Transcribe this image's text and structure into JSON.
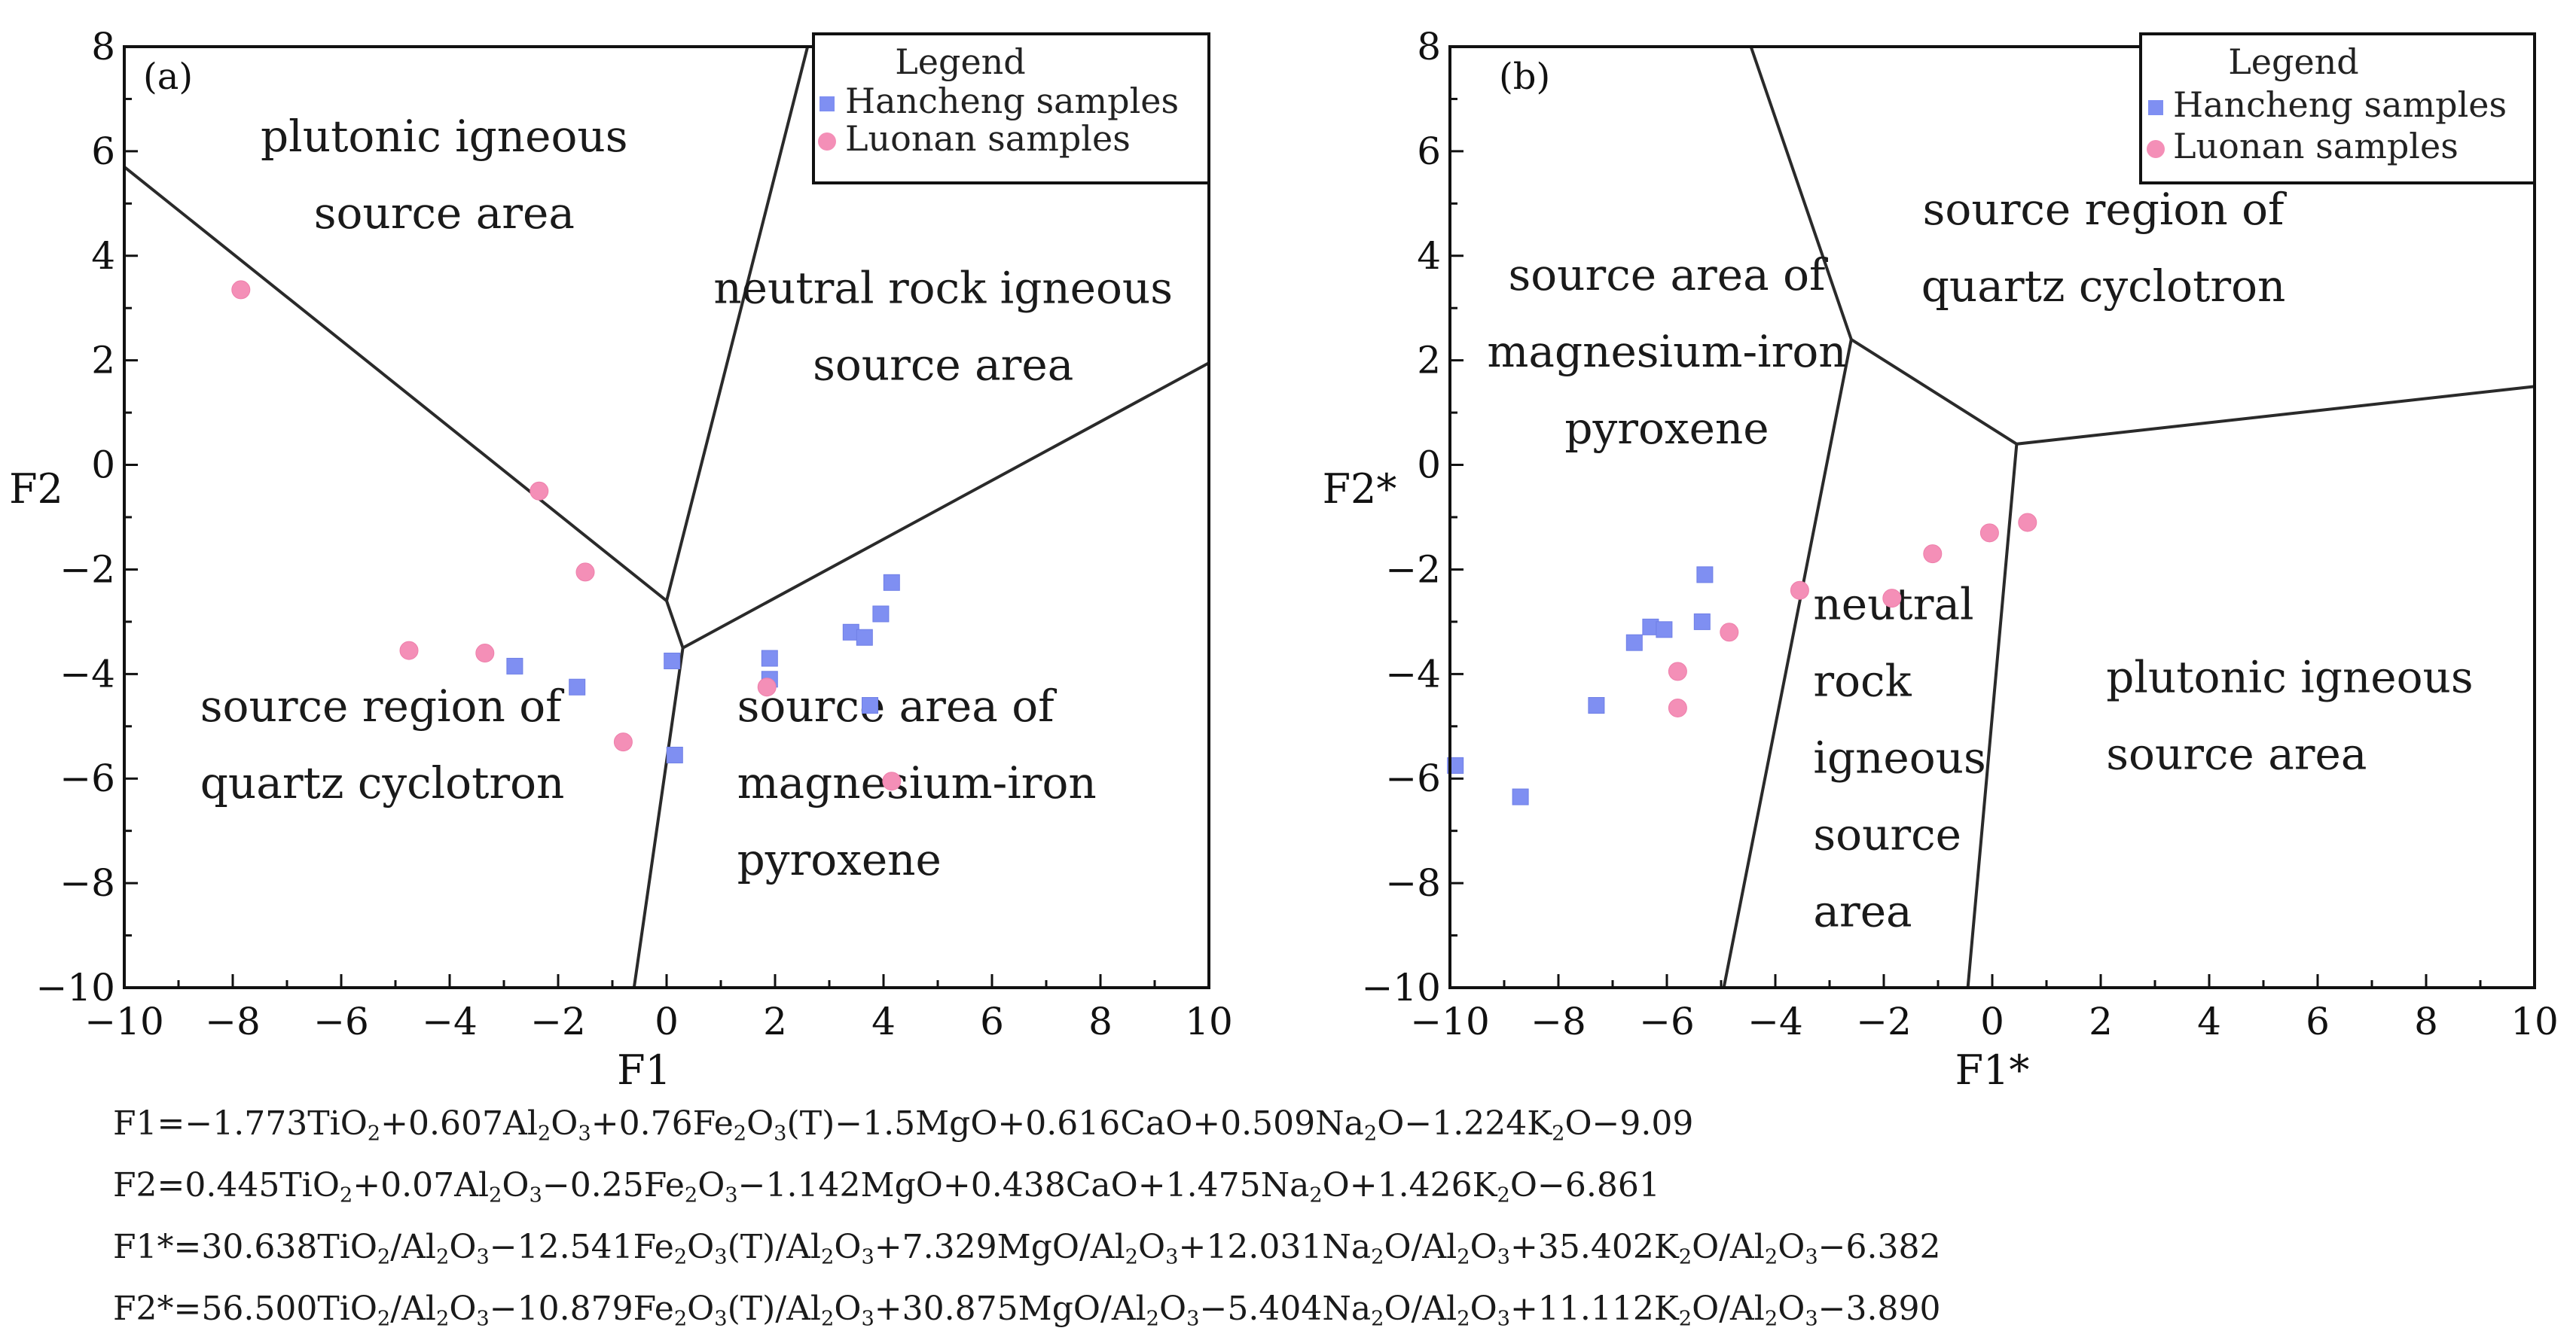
{
  "chart_data": [
    {
      "type": "scatter",
      "panel_label": "(a)",
      "xlabel": "F1",
      "ylabel": "F2",
      "xlim": [
        -10,
        10
      ],
      "ylim": [
        -10,
        8
      ],
      "xticks": [
        "−10",
        "−8",
        "−6",
        "−4",
        "−2",
        "0",
        "2",
        "4",
        "6",
        "8",
        "10"
      ],
      "yticks": [
        "8",
        "6",
        "4",
        "2",
        "0",
        "−2",
        "−4",
        "−6",
        "−8",
        "−10"
      ],
      "legend": {
        "title": "Legend",
        "entries": [
          "Hancheng samples",
          "Luonan samples"
        ],
        "position": "top-right"
      },
      "boundaries": [
        [
          [
            -10,
            5.7
          ],
          [
            0,
            -2.6
          ],
          [
            0.3,
            -3.5
          ]
        ],
        [
          [
            0,
            -2.6
          ],
          [
            2.6,
            8
          ]
        ],
        [
          [
            0.3,
            -3.5
          ],
          [
            10,
            1.95
          ]
        ],
        [
          [
            0.3,
            -3.5
          ],
          [
            -0.6,
            -10
          ]
        ]
      ],
      "regions": [
        {
          "label_lines": [
            "plutonic igneous",
            "source area"
          ],
          "at": [
            -4.1,
            6.0
          ],
          "align": "middle"
        },
        {
          "label_lines": [
            "neutral rock igneous",
            "source area"
          ],
          "at": [
            5.1,
            3.1
          ],
          "align": "middle"
        },
        {
          "label_lines": [
            "source region of",
            "quartz cyclotron"
          ],
          "at": [
            -8.6,
            -4.9
          ],
          "align": "start"
        },
        {
          "label_lines": [
            "source area of",
            "magnesium-iron",
            "pyroxene"
          ],
          "at": [
            1.3,
            -4.9
          ],
          "align": "start"
        }
      ],
      "series": [
        {
          "name": "Hancheng samples",
          "marker": "square",
          "color": "#7f8ff2",
          "points": [
            [
              -2.8,
              -3.85
            ],
            [
              -1.65,
              -4.25
            ],
            [
              0.1,
              -3.75
            ],
            [
              0.15,
              -5.55
            ],
            [
              1.9,
              -3.7
            ],
            [
              1.9,
              -4.1
            ],
            [
              3.4,
              -3.2
            ],
            [
              3.65,
              -3.3
            ],
            [
              3.95,
              -2.85
            ],
            [
              4.15,
              -2.25
            ],
            [
              3.75,
              -4.6
            ]
          ]
        },
        {
          "name": "Luonan samples",
          "marker": "circle",
          "color": "#f48fb7",
          "points": [
            [
              -7.85,
              3.35
            ],
            [
              -2.35,
              -0.5
            ],
            [
              -1.5,
              -2.05
            ],
            [
              -4.75,
              -3.55
            ],
            [
              -3.35,
              -3.6
            ],
            [
              -0.8,
              -5.3
            ],
            [
              1.85,
              -4.25
            ],
            [
              4.15,
              -6.05
            ]
          ]
        }
      ]
    },
    {
      "type": "scatter",
      "panel_label": "(b)",
      "xlabel": "F1*",
      "ylabel": "F2*",
      "xlim": [
        -10,
        10
      ],
      "ylim": [
        -10,
        8
      ],
      "xticks": [
        "−10",
        "−8",
        "−6",
        "−4",
        "−2",
        "0",
        "2",
        "4",
        "6",
        "8",
        "10"
      ],
      "yticks": [
        "8",
        "6",
        "4",
        "2",
        "0",
        "−2",
        "−4",
        "−6",
        "−8",
        "−10"
      ],
      "legend": {
        "title": "Legend",
        "entries": [
          "Hancheng samples",
          "Luonan samples"
        ],
        "position": "top-right"
      },
      "boundaries": [
        [
          [
            -4.45,
            8
          ],
          [
            -2.6,
            2.4
          ],
          [
            0.45,
            0.4
          ],
          [
            10,
            1.5
          ]
        ],
        [
          [
            -2.6,
            2.4
          ],
          [
            -4.95,
            -10
          ]
        ],
        [
          [
            0.45,
            0.4
          ],
          [
            -0.45,
            -10
          ]
        ]
      ],
      "regions": [
        {
          "label_lines": [
            "source area of",
            "magnesium-iron",
            "pyroxene"
          ],
          "at": [
            -6.0,
            3.35
          ],
          "align": "middle"
        },
        {
          "label_lines": [
            "source region of",
            "quartz cyclotron"
          ],
          "at": [
            2.05,
            4.6
          ],
          "align": "middle"
        },
        {
          "label_lines": [
            "neutral",
            "rock",
            "igneous",
            "source",
            "area"
          ],
          "at": [
            -3.3,
            -2.95
          ],
          "align": "start"
        },
        {
          "label_lines": [
            "plutonic igneous",
            "source area"
          ],
          "at": [
            2.1,
            -4.35
          ],
          "align": "start"
        }
      ],
      "series": [
        {
          "name": "Hancheng samples",
          "marker": "square",
          "color": "#7f8ff2",
          "points": [
            [
              -9.9,
              -5.75
            ],
            [
              -8.7,
              -6.35
            ],
            [
              -7.3,
              -4.6
            ],
            [
              -6.6,
              -3.4
            ],
            [
              -6.3,
              -3.1
            ],
            [
              -6.05,
              -3.15
            ],
            [
              -5.35,
              -3.0
            ],
            [
              -5.3,
              -2.1
            ]
          ]
        },
        {
          "name": "Luonan samples",
          "marker": "circle",
          "color": "#f48fb7",
          "points": [
            [
              -5.8,
              -3.95
            ],
            [
              -5.8,
              -4.65
            ],
            [
              -4.85,
              -3.2
            ],
            [
              -3.55,
              -2.4
            ],
            [
              -1.85,
              -2.55
            ],
            [
              -1.1,
              -1.7
            ],
            [
              -0.05,
              -1.3
            ],
            [
              0.65,
              -1.1
            ]
          ]
        }
      ]
    }
  ],
  "formulas": [
    "F1=−1.773TiO₂+0.607Al₂O₃+0.76Fe₂O₃(T)−1.5MgO+0.616CaO+0.509Na₂O−1.224K₂O−9.09",
    "F2=0.445TiO₂+0.07Al₂O₃−0.25Fe₂O₃−1.142MgO+0.438CaO+1.475Na₂O+1.426K₂O−6.861",
    "F1*=30.638TiO₂/Al₂O₃−12.541Fe₂O₃(T)/Al₂O₃+7.329MgO/Al₂O₃+12.031Na₂O/Al₂O₃+35.402K₂O/Al₂O₃−6.382",
    "F2*=56.500TiO₂/Al₂O₃−10.879Fe₂O₃(T)/Al₂O₃+30.875MgO/Al₂O₃−5.404Na₂O/Al₂O₃+11.112K₂O/Al₂O₃−3.890"
  ]
}
